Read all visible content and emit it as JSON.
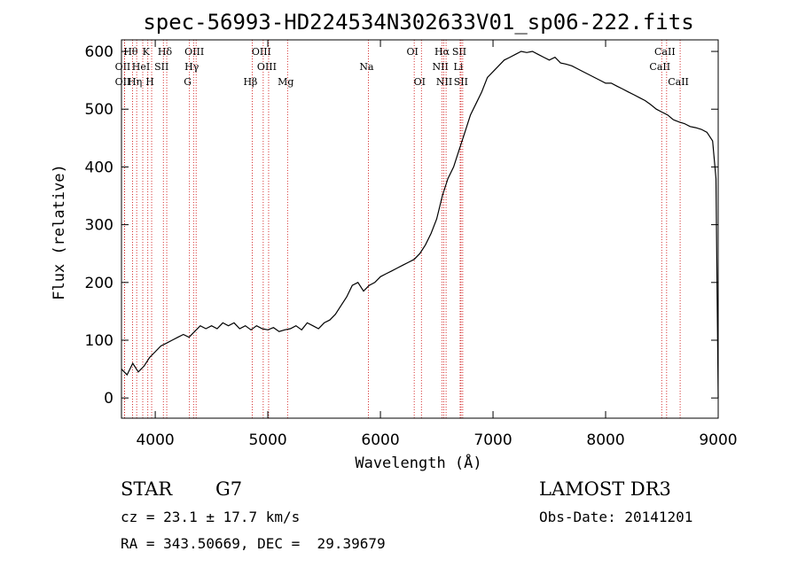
{
  "chart_data": {
    "type": "line",
    "title": "spec-56993-HD224534N302633V01_sp06-222.fits",
    "xlabel": "Wavelength (Å)",
    "ylabel": "Flux (relative)",
    "xlim": [
      3700,
      9000
    ],
    "ylim": [
      -35,
      620
    ],
    "xticks": [
      4000,
      5000,
      6000,
      7000,
      8000,
      9000
    ],
    "yticks": [
      0,
      100,
      200,
      300,
      400,
      500,
      600
    ],
    "line_color": "#000000",
    "marker_color": "#cc0000",
    "series": [
      {
        "name": "flux",
        "x": [
          3700,
          3750,
          3800,
          3850,
          3900,
          3950,
          4000,
          4050,
          4100,
          4150,
          4200,
          4250,
          4300,
          4350,
          4400,
          4450,
          4500,
          4550,
          4600,
          4650,
          4700,
          4750,
          4800,
          4850,
          4900,
          4950,
          5000,
          5050,
          5100,
          5150,
          5200,
          5250,
          5300,
          5350,
          5400,
          5450,
          5500,
          5550,
          5600,
          5650,
          5700,
          5750,
          5800,
          5850,
          5900,
          5950,
          6000,
          6050,
          6100,
          6150,
          6200,
          6250,
          6300,
          6350,
          6400,
          6450,
          6500,
          6550,
          6600,
          6650,
          6700,
          6750,
          6800,
          6850,
          6900,
          6950,
          7000,
          7050,
          7100,
          7150,
          7200,
          7250,
          7300,
          7350,
          7400,
          7450,
          7500,
          7550,
          7600,
          7650,
          7700,
          7750,
          7800,
          7850,
          7900,
          7950,
          8000,
          8050,
          8100,
          8150,
          8200,
          8250,
          8300,
          8350,
          8400,
          8450,
          8500,
          8550,
          8600,
          8650,
          8700,
          8750,
          8800,
          8850,
          8900,
          8950,
          8980,
          9000
        ],
        "y": [
          50,
          40,
          60,
          45,
          55,
          70,
          80,
          90,
          95,
          100,
          105,
          110,
          105,
          115,
          125,
          120,
          125,
          120,
          130,
          125,
          130,
          120,
          125,
          118,
          125,
          120,
          118,
          122,
          115,
          118,
          120,
          125,
          118,
          130,
          125,
          120,
          130,
          135,
          145,
          160,
          175,
          195,
          200,
          185,
          195,
          200,
          210,
          215,
          220,
          225,
          230,
          235,
          240,
          250,
          265,
          285,
          310,
          350,
          380,
          400,
          430,
          460,
          490,
          510,
          530,
          555,
          565,
          575,
          585,
          590,
          595,
          600,
          598,
          600,
          595,
          590,
          585,
          590,
          580,
          578,
          575,
          570,
          565,
          560,
          555,
          550,
          545,
          545,
          540,
          535,
          530,
          525,
          520,
          515,
          508,
          500,
          495,
          490,
          482,
          478,
          475,
          470,
          468,
          465,
          460,
          445,
          380,
          0
        ]
      }
    ],
    "spectral_lines": [
      {
        "label": "Hθ",
        "wavelength": 3798,
        "row": 1
      },
      {
        "label": "K",
        "wavelength": 3934,
        "row": 1
      },
      {
        "label": "Hδ",
        "wavelength": 4102,
        "row": 1
      },
      {
        "label": "OIII",
        "wavelength": 4363,
        "row": 1
      },
      {
        "label": "OIII",
        "wavelength": 4959,
        "row": 1
      },
      {
        "label": "OI",
        "wavelength": 6300,
        "row": 1
      },
      {
        "label": "Hα",
        "wavelength": 6563,
        "row": 1
      },
      {
        "label": "SII",
        "wavelength": 6716,
        "row": 1
      },
      {
        "label": "CaII",
        "wavelength": 8542,
        "row": 1
      },
      {
        "label": "OII",
        "wavelength": 3727,
        "row": 2
      },
      {
        "label": "HeI",
        "wavelength": 3889,
        "row": 2
      },
      {
        "label": "SII",
        "wavelength": 4072,
        "row": 2
      },
      {
        "label": "Hγ",
        "wavelength": 4340,
        "row": 2
      },
      {
        "label": "OIII",
        "wavelength": 5007,
        "row": 2
      },
      {
        "label": "Na",
        "wavelength": 5893,
        "row": 2
      },
      {
        "label": "NII",
        "wavelength": 6548,
        "row": 2
      },
      {
        "label": "Li",
        "wavelength": 6708,
        "row": 2
      },
      {
        "label": "CaII",
        "wavelength": 8498,
        "row": 2
      },
      {
        "label": "OII",
        "wavelength": 3727,
        "row": 3
      },
      {
        "label": "Hη",
        "wavelength": 3835,
        "row": 3
      },
      {
        "label": "H",
        "wavelength": 3968,
        "row": 3
      },
      {
        "label": "G",
        "wavelength": 4304,
        "row": 3
      },
      {
        "label": "Hβ",
        "wavelength": 4861,
        "row": 3
      },
      {
        "label": "Mg",
        "wavelength": 5175,
        "row": 3
      },
      {
        "label": "OI",
        "wavelength": 6364,
        "row": 3
      },
      {
        "label": "NII",
        "wavelength": 6583,
        "row": 3
      },
      {
        "label": "SII",
        "wavelength": 6731,
        "row": 3
      },
      {
        "label": "CaII",
        "wavelength": 8662,
        "row": 3
      }
    ]
  },
  "info": {
    "class_label": "STAR",
    "subclass": "G7",
    "survey": "LAMOST DR3",
    "redshift": "cz = 23.1 ± 17.7 km/s",
    "obs_date": "Obs-Date: 20141201",
    "coordinates": "RA = 343.50669, DEC =  29.39679"
  }
}
